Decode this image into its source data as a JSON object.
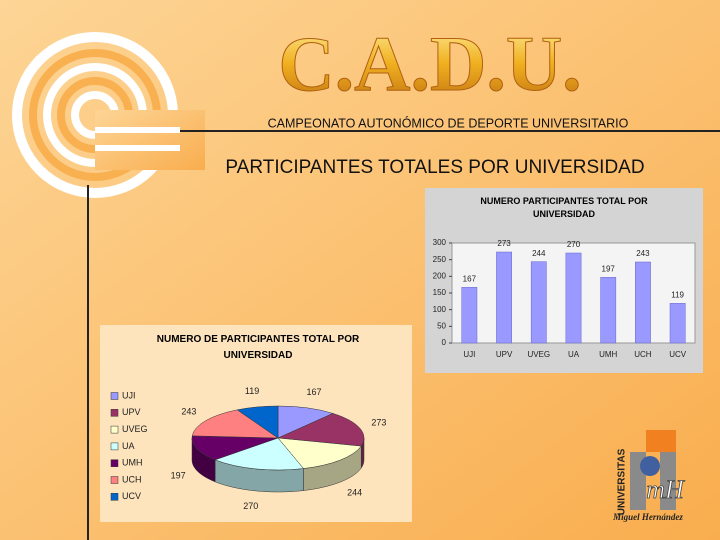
{
  "header": {
    "logo_title": "C.A.D.U.",
    "subtitle": "CAMPEONATO AUTONÓMICO DE DEPORTE UNIVERSITARIO",
    "title": "PARTICIPANTES TOTALES POR UNIVERSIDAD"
  },
  "logo": {
    "vertical": "UNIVERSITAS",
    "mark": "mH",
    "name": "Miguel Hernández"
  },
  "chart_data": [
    {
      "type": "bar",
      "title": "NUMERO PARTICIPANTES TOTAL POR UNIVERSIDAD",
      "categories": [
        "UJI",
        "UPV",
        "UVEG",
        "UA",
        "UMH",
        "UCH",
        "UCV"
      ],
      "values": [
        167,
        273,
        244,
        270,
        197,
        243,
        119
      ],
      "color": "#9999ff",
      "ylim": [
        0,
        300
      ],
      "yticks": [
        0,
        50,
        100,
        150,
        200,
        250,
        300
      ],
      "show_values": true
    },
    {
      "type": "pie",
      "title": "NUMERO DE PARTICIPANTES TOTAL POR UNIVERSIDAD",
      "categories": [
        "UJI",
        "UPV",
        "UVEG",
        "UA",
        "UMH",
        "UCH",
        "UCV"
      ],
      "values": [
        167,
        273,
        244,
        270,
        197,
        243,
        119
      ],
      "colors": [
        "#9999ff",
        "#993366",
        "#ffffcc",
        "#ccffff",
        "#660066",
        "#ff8080",
        "#0066cc"
      ],
      "legend": "left",
      "show_values": true
    }
  ]
}
